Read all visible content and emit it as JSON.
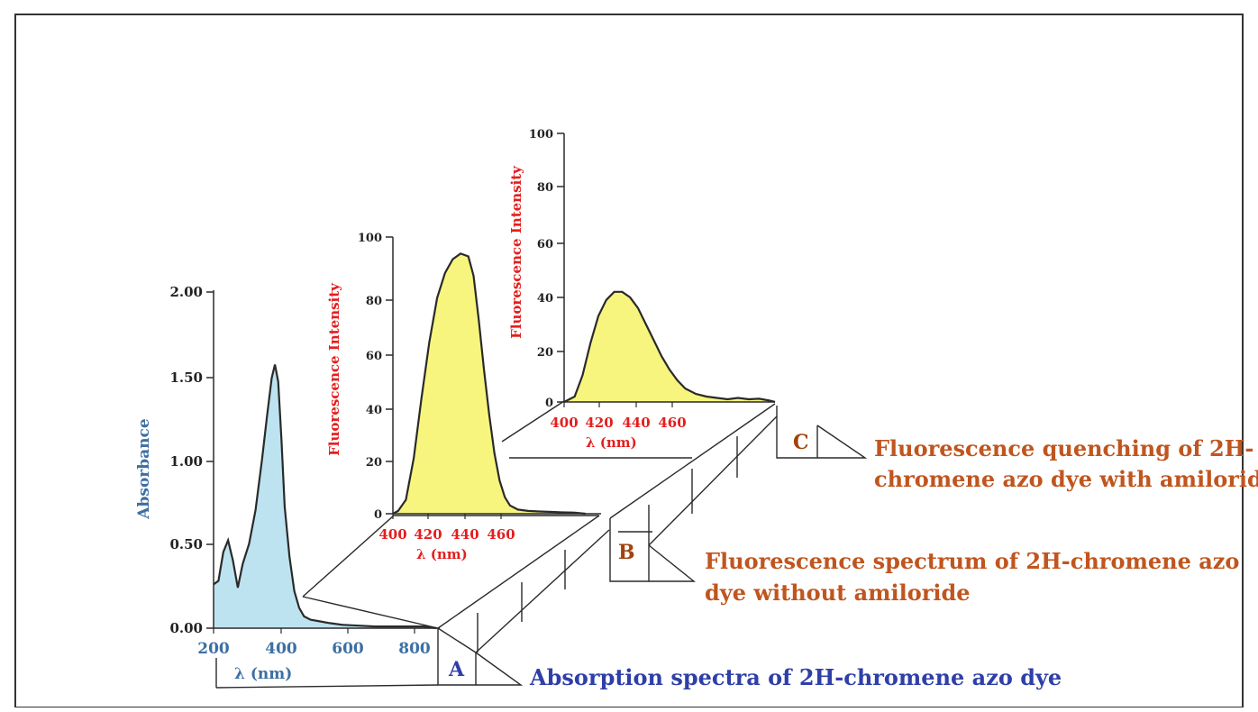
{
  "colors": {
    "frame": "#333333",
    "line": "#2a2a2a",
    "panel_a_fill": "#bde3f0",
    "panel_bc_fill": "#f7f57e",
    "blue_text": "#3d6fa3",
    "red_text": "#e41e1e",
    "label_a": "#2f3fa8",
    "label_bc": "#c0551e",
    "letter": "#a0430e"
  },
  "labels": {
    "A": "A",
    "B": "B",
    "C": "C",
    "desc_a": "Absorption spectra of 2H-chromene azo dye",
    "desc_b_line1": "Fluorescence spectrum of 2H-chromene azo",
    "desc_b_line2": "dye without amiloride",
    "desc_c_line1": "Fluorescence quenching of 2H-",
    "desc_c_line2": "chromene azo dye with amiloride"
  },
  "chart_data": [
    {
      "id": "A",
      "type": "area",
      "xlabel": "λ  (nm)",
      "ylabel": "Absorbance",
      "xlim": [
        200,
        900
      ],
      "ylim": [
        0,
        2
      ],
      "xticks": [
        "200",
        "400",
        "600",
        "800"
      ],
      "yticks": [
        "0.00",
        "0.50",
        "1.00",
        "1.50",
        "2.00"
      ],
      "x": [
        200,
        215,
        230,
        245,
        260,
        275,
        290,
        310,
        330,
        350,
        365,
        380,
        390,
        400,
        410,
        420,
        435,
        450,
        465,
        480,
        500,
        530,
        560,
        600,
        650,
        700,
        750,
        800,
        850,
        890
      ],
      "y": [
        0.26,
        0.28,
        0.45,
        0.52,
        0.4,
        0.24,
        0.38,
        0.5,
        0.7,
        1.0,
        1.25,
        1.48,
        1.56,
        1.46,
        1.12,
        0.72,
        0.42,
        0.22,
        0.12,
        0.07,
        0.05,
        0.04,
        0.03,
        0.02,
        0.015,
        0.01,
        0.01,
        0.01,
        0.01,
        0.0
      ]
    },
    {
      "id": "B",
      "type": "area",
      "xlabel": "λ (nm)",
      "ylabel": "Fluorescence Intensity",
      "xlim": [
        400,
        480
      ],
      "ylim": [
        0,
        100
      ],
      "xticks": [
        "400",
        "420",
        "440",
        "460"
      ],
      "yticks": [
        "0",
        "20",
        "40",
        "60",
        "80",
        "100"
      ],
      "x": [
        400,
        402,
        405,
        408,
        411,
        414,
        417,
        420,
        423,
        426,
        429,
        431,
        433,
        435,
        437,
        439,
        441,
        443,
        445,
        448,
        452,
        456,
        460,
        465,
        470,
        474
      ],
      "y": [
        0,
        1,
        5,
        20,
        42,
        62,
        78,
        87,
        92,
        94,
        93,
        86,
        70,
        52,
        36,
        22,
        12,
        6,
        3,
        1.5,
        1,
        0.8,
        0.7,
        0.5,
        0.4,
        0
      ]
    },
    {
      "id": "C",
      "type": "area",
      "xlabel": "λ (nm)",
      "ylabel": "Fluorescence Intensity",
      "xlim": [
        400,
        480
      ],
      "ylim": [
        0,
        100
      ],
      "xticks": [
        "400",
        "420",
        "440",
        "460"
      ],
      "yticks": [
        "0",
        "20",
        "40",
        "60",
        "80",
        "100"
      ],
      "x": [
        400,
        404,
        407,
        410,
        413,
        416,
        419,
        422,
        425,
        428,
        431,
        434,
        437,
        440,
        443,
        446,
        450,
        454,
        458,
        462,
        466,
        470,
        474,
        478,
        480
      ],
      "y": [
        0,
        2,
        10,
        22,
        32,
        38,
        41,
        41,
        39,
        35,
        29,
        23,
        17,
        12,
        8,
        5,
        3,
        2,
        1.5,
        1,
        1.5,
        1,
        1.2,
        0.5,
        0
      ]
    }
  ]
}
